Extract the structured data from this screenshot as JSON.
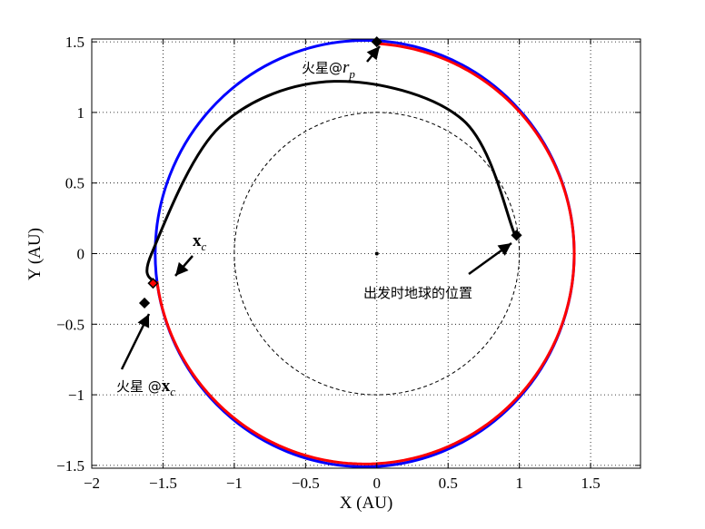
{
  "chart_data": {
    "type": "line",
    "xlabel": "X (AU)",
    "ylabel": "Y (AU)",
    "xlim": [
      -2.0,
      1.85
    ],
    "ylim": [
      -1.52,
      1.52
    ],
    "xticks": [
      -2,
      -1.5,
      -1,
      -0.5,
      0,
      0.5,
      1,
      1.5
    ],
    "yticks": [
      -1.5,
      -1,
      -0.5,
      0,
      0.5,
      1,
      1.5
    ],
    "xtick_labels": [
      "−2",
      "−1.5",
      "−1",
      "−0.5",
      "0",
      "0.5",
      "1",
      "1.5"
    ],
    "ytick_labels": [
      "−1.5",
      "−1",
      "−0.5",
      "0",
      "0.5",
      "1",
      "1.5"
    ],
    "grid": true,
    "sun": [
      0,
      0
    ],
    "series": [
      {
        "kind": "ellipse",
        "color": "#0000ff",
        "cx": -0.085,
        "cy": 0,
        "rx": 1.47,
        "ry": 1.51
      },
      {
        "kind": "ellipse-arc",
        "color": "#ff0000",
        "cx": -0.085,
        "cy": 0,
        "rx": 1.47,
        "ry": 1.49,
        "from": [
          0,
          1.5
        ],
        "to": [
          -1.57,
          -0.2
        ],
        "direction": "clockwise"
      },
      {
        "kind": "arc",
        "color": "#000000",
        "points": [
          [
            0.97,
            0.13
          ],
          [
            0.6,
            0.95
          ],
          [
            -0.3,
            1.22
          ],
          [
            -1.1,
            0.9
          ],
          [
            -1.58,
            0.0
          ],
          [
            -1.57,
            -0.2
          ]
        ]
      },
      {
        "kind": "circle",
        "color": "#000000",
        "dashed": true,
        "cx": 0,
        "cy": 0,
        "r": 1.0
      }
    ],
    "markers": [
      {
        "name": "mars-rp",
        "x": 0.0,
        "y": 1.5,
        "color": "#000000",
        "shape": "diamond"
      },
      {
        "name": "earth-departure",
        "x": 0.98,
        "y": 0.13,
        "color": "#000000",
        "shape": "diamond"
      },
      {
        "name": "xc",
        "x": -1.57,
        "y": -0.21,
        "color": "#ff0000",
        "shape": "diamond"
      },
      {
        "name": "mars-xc",
        "x": -1.63,
        "y": -0.35,
        "color": "#000000",
        "shape": "diamond"
      }
    ],
    "annotations": [
      {
        "prefix": "火星@",
        "math": "r",
        "sub": "p",
        "bold": false
      },
      {
        "prefix": "",
        "math": "x",
        "sub": "c",
        "bold": true
      },
      {
        "prefix": "火星 @",
        "math": "x",
        "sub": "c",
        "bold": true
      },
      {
        "prefix": "出发时地球的位置",
        "math": "",
        "sub": "",
        "bold": false
      }
    ]
  }
}
